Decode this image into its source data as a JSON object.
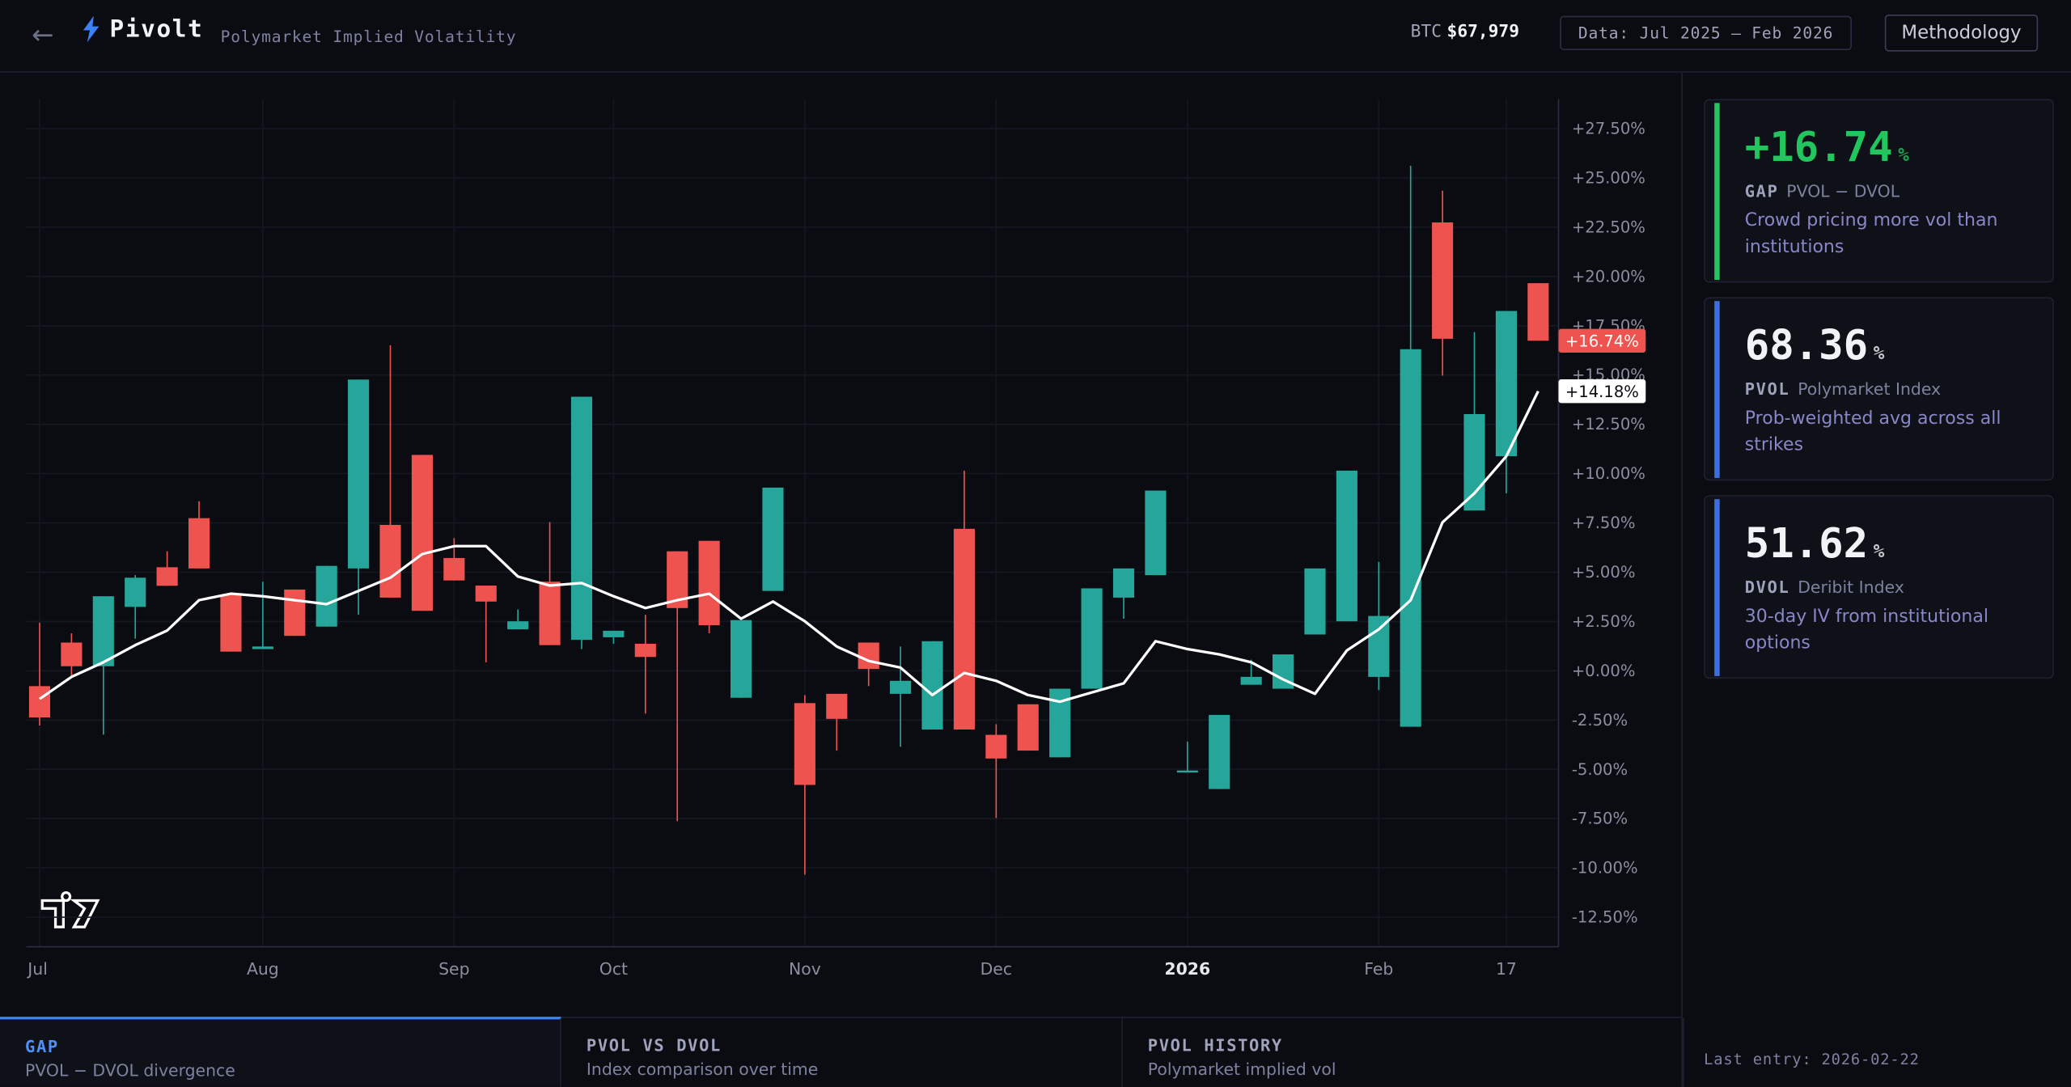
{
  "header": {
    "back": "←",
    "brand": "Pivolt",
    "subtitle": "Polymarket Implied Volatility",
    "btc_label": "BTC",
    "btc_price": "$67,979",
    "data_range": "Data: Jul 2025 – Feb 2026",
    "methodology": "Methodology"
  },
  "chart_data": {
    "type": "candlestick",
    "categories": [
      "Jul",
      null,
      null,
      null,
      null,
      null,
      null,
      "Aug",
      null,
      null,
      null,
      null,
      null,
      "Sep",
      null,
      null,
      null,
      null,
      "Oct",
      null,
      null,
      null,
      null,
      null,
      "Nov",
      null,
      null,
      null,
      null,
      null,
      "Dec",
      null,
      null,
      null,
      null,
      null,
      "2026",
      null,
      null,
      null,
      null,
      null,
      "Feb",
      null,
      null,
      null,
      "17",
      null
    ],
    "candles": {
      "up_color": "#26a69a",
      "down_color": "#ef5350",
      "open": [
        -0.78,
        1.43,
        0.23,
        3.24,
        5.25,
        7.74,
        3.85,
        1.1,
        4.12,
        2.24,
        5.19,
        7.4,
        10.95,
        5.72,
        4.32,
        2.1,
        4.52,
        1.57,
        1.7,
        1.37,
        6.06,
        6.59,
        -1.37,
        4.05,
        -1.64,
        -1.17,
        1.43,
        -1.17,
        -2.98,
        7.2,
        -3.25,
        -1.7,
        -4.39,
        -0.91,
        3.71,
        4.85,
        -5.12,
        -6.0,
        -0.71,
        -0.91,
        1.84,
        2.51,
        -0.31,
        -2.84,
        22.74,
        8.13,
        10.88,
        19.66
      ],
      "high": [
        2.44,
        1.9,
        3.78,
        4.85,
        6.06,
        8.6,
        3.85,
        4.52,
        4.12,
        5.32,
        14.77,
        16.51,
        10.95,
        6.73,
        4.32,
        3.11,
        7.54,
        13.9,
        2.03,
        2.84,
        6.06,
        6.59,
        2.57,
        9.29,
        -1.23,
        -1.17,
        1.43,
        1.23,
        1.5,
        10.15,
        -2.71,
        -1.7,
        -0.91,
        4.18,
        5.19,
        9.14,
        -3.59,
        -2.24,
        0.56,
        0.83,
        5.19,
        10.15,
        5.52,
        25.62,
        24.35,
        17.18,
        18.25,
        19.66
      ],
      "low": [
        -2.78,
        -0.24,
        -3.24,
        1.63,
        4.31,
        5.19,
        0.97,
        1.1,
        1.77,
        2.24,
        2.84,
        3.71,
        3.04,
        4.58,
        0.43,
        2.1,
        1.3,
        1.1,
        1.37,
        -2.17,
        -7.63,
        1.9,
        -1.37,
        4.05,
        -10.34,
        -4.05,
        -0.78,
        -3.85,
        -2.98,
        -2.98,
        -7.47,
        -4.05,
        -4.39,
        -0.91,
        2.64,
        4.85,
        -5.12,
        -6.0,
        -0.71,
        -0.91,
        1.84,
        2.51,
        -0.98,
        -2.84,
        14.97,
        8.13,
        9.0,
        16.74
      ],
      "close": [
        -2.37,
        0.23,
        3.78,
        4.72,
        4.31,
        5.19,
        0.97,
        1.23,
        1.77,
        5.32,
        14.77,
        3.71,
        3.04,
        4.58,
        3.51,
        2.51,
        1.3,
        13.9,
        2.03,
        0.7,
        3.18,
        2.31,
        2.57,
        9.29,
        -5.79,
        -2.44,
        0.09,
        -0.51,
        1.5,
        -2.98,
        -4.45,
        -4.05,
        -0.91,
        4.18,
        5.19,
        9.14,
        -5.06,
        -2.24,
        -0.31,
        0.83,
        5.19,
        10.15,
        2.78,
        16.31,
        16.84,
        13.02,
        18.25,
        16.74
      ]
    },
    "line": {
      "color": "#ffffff",
      "values": [
        -1.43,
        -0.31,
        0.43,
        1.3,
        2.04,
        3.58,
        3.91,
        3.78,
        3.58,
        3.38,
        4.05,
        4.72,
        5.92,
        6.32,
        6.32,
        4.78,
        4.32,
        4.45,
        3.78,
        3.18,
        3.58,
        3.91,
        2.64,
        3.51,
        2.51,
        1.23,
        0.5,
        0.16,
        -1.23,
        -0.11,
        -0.51,
        -1.23,
        -1.57,
        -1.1,
        -0.64,
        1.5,
        1.1,
        0.83,
        0.43,
        -0.44,
        -1.17,
        1.03,
        2.1,
        3.58,
        7.53,
        9.0,
        10.88,
        14.18
      ]
    },
    "price_tags": [
      {
        "value": 16.74,
        "label": "+16.74%",
        "color": "#ef5350"
      },
      {
        "value": 14.18,
        "label": "+14.18%",
        "color": "#ffffff"
      }
    ],
    "ylim": [
      -14,
      29
    ],
    "yticks": [
      {
        "value": -12.5,
        "label": "-12.50%"
      },
      {
        "value": -10,
        "label": "-10.00%"
      },
      {
        "value": -7.5,
        "label": "-7.50%"
      },
      {
        "value": -5,
        "label": "-5.00%"
      },
      {
        "value": -2.5,
        "label": "-2.50%"
      },
      {
        "value": 0,
        "label": "+0.00%"
      },
      {
        "value": 2.5,
        "label": "+2.50%"
      },
      {
        "value": 5,
        "label": "+5.00%"
      },
      {
        "value": 7.5,
        "label": "+7.50%"
      },
      {
        "value": 10,
        "label": "+10.00%"
      },
      {
        "value": 12.5,
        "label": "+12.50%"
      },
      {
        "value": 15,
        "label": "+15.00%"
      },
      {
        "value": 17.5,
        "label": "+17.50%"
      },
      {
        "value": 20,
        "label": "+20.00%"
      },
      {
        "value": 22.5,
        "label": "+22.50%"
      },
      {
        "value": 25,
        "label": "+25.00%"
      },
      {
        "value": 27.5,
        "label": "+27.50%"
      }
    ],
    "grid": true
  },
  "cards": [
    {
      "value": "+16.74",
      "unit": "%",
      "key": "GAP",
      "label": "PVOL − DVOL",
      "desc": "Crowd pricing more vol than institutions",
      "color": "#22c55e"
    },
    {
      "value": "68.36",
      "unit": "%",
      "key": "PVOL",
      "label": "Polymarket Index",
      "desc": "Prob-weighted avg across all strikes",
      "color": "#3b6fe0"
    },
    {
      "value": "51.62",
      "unit": "%",
      "key": "DVOL",
      "label": "Deribit Index",
      "desc": "30-day IV from institutional options",
      "color": "#3b6fe0"
    }
  ],
  "tabs": [
    {
      "title": "GAP",
      "subtitle": "PVOL − DVOL divergence"
    },
    {
      "title": "PVOL VS DVOL",
      "subtitle": "Index comparison over time"
    },
    {
      "title": "PVOL HISTORY",
      "subtitle": "Polymarket implied vol"
    }
  ],
  "footer": {
    "last_entry": "Last entry: 2026-02-22"
  }
}
